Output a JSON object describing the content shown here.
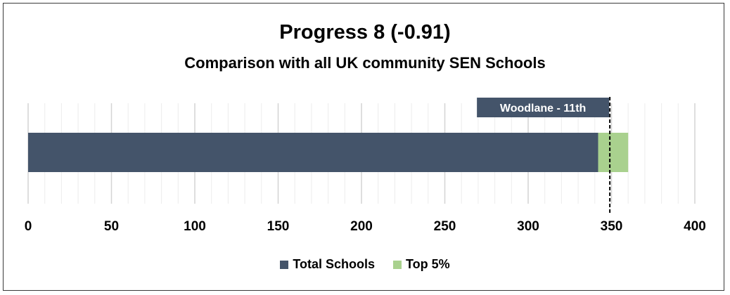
{
  "chart_data": {
    "type": "bar",
    "orientation": "horizontal",
    "stacked": true,
    "title": "Progress 8 (-0.91)",
    "subtitle": "Comparison with all UK community SEN Schools",
    "xlim": [
      0,
      400
    ],
    "x_ticks": [
      0,
      50,
      100,
      150,
      200,
      250,
      300,
      350,
      400
    ],
    "grid": "vertical",
    "series": [
      {
        "name": "Total Schools",
        "values": [
          342
        ],
        "color": "#44546a"
      },
      {
        "name": "Top 5%",
        "values": [
          18
        ],
        "color": "#a9d18e"
      }
    ],
    "marker": {
      "label": "Woodlane - 11th",
      "value": 349,
      "style": "dashed",
      "box_color": "#44546a"
    },
    "legend": {
      "position": "bottom"
    }
  }
}
